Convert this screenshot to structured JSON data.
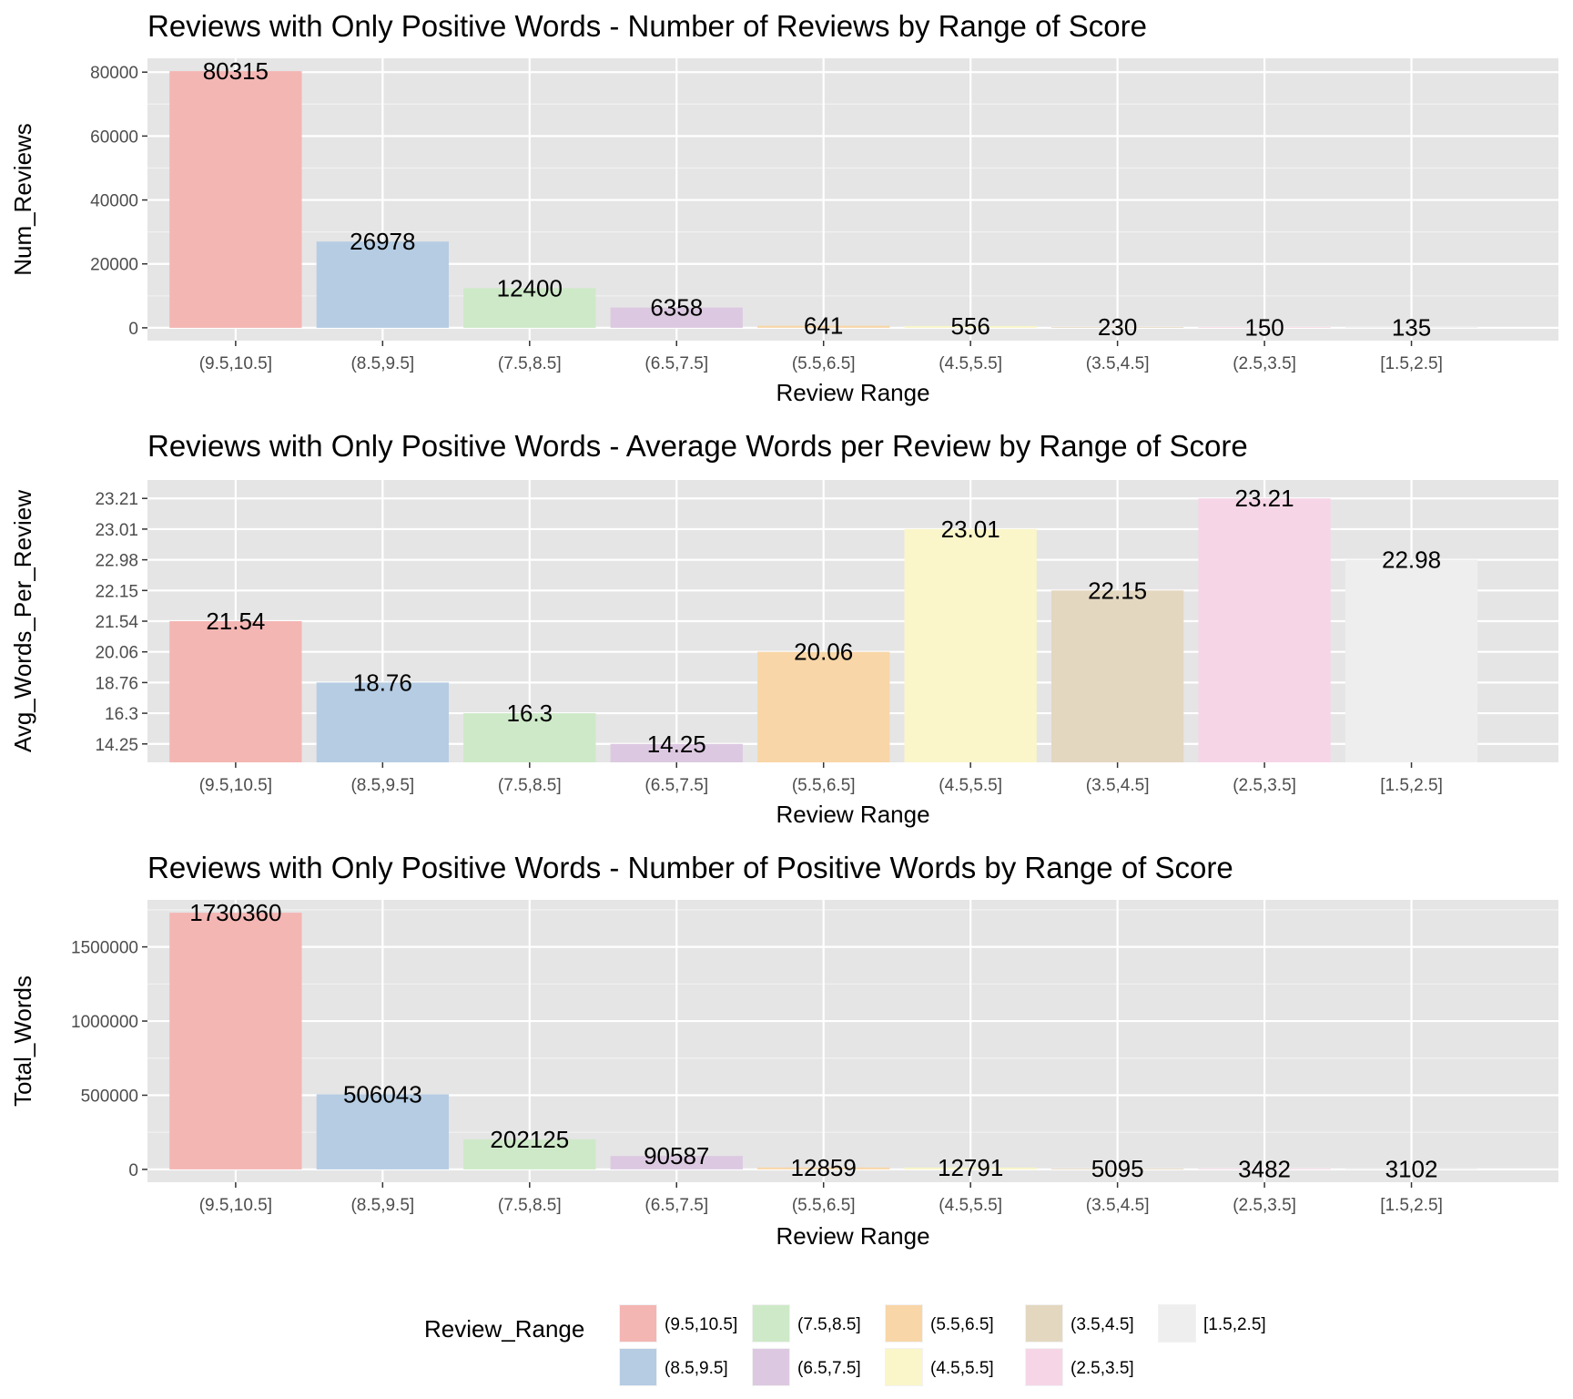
{
  "colors": {
    "(9.5,10.5]": "#F4B6B3",
    "(8.5,9.5]": "#B5CCE3",
    "(7.5,8.5]": "#CEE9C8",
    "(6.5,7.5]": "#DCC9E1",
    "(5.5,6.5]": "#F8D6A8",
    "(4.5,5.5]": "#FAF6C9",
    "(3.5,4.5]": "#E3D7C0",
    "(2.5,3.5]": "#F6D6E6",
    "[1.5,2.5]": "#EEEEEE"
  },
  "legend": {
    "title": "Review_Range",
    "items": [
      "(9.5,10.5]",
      "(8.5,9.5]",
      "(7.5,8.5]",
      "(6.5,7.5]",
      "(5.5,6.5]",
      "(4.5,5.5]",
      "(3.5,4.5]",
      "(2.5,3.5]",
      "[1.5,2.5]"
    ],
    "placement": "bottom"
  },
  "chart_data": [
    {
      "type": "bar",
      "title": "Reviews with Only Positive Words - Number of Reviews by Range of Score",
      "xlabel": "Review Range",
      "ylabel": "Num_Reviews",
      "categories": [
        "(9.5,10.5]",
        "(8.5,9.5]",
        "(7.5,8.5]",
        "(6.5,7.5]",
        "(5.5,6.5]",
        "(4.5,5.5]",
        "(3.5,4.5]",
        "(2.5,3.5]",
        "[1.5,2.5]"
      ],
      "values": [
        80315,
        26978,
        12400,
        6358,
        641,
        556,
        230,
        150,
        135
      ],
      "labels": [
        "80315",
        "26978",
        "12400",
        "6358",
        "641",
        "556",
        "230",
        "150",
        "135"
      ],
      "yticks": [
        0,
        20000,
        40000,
        60000,
        80000
      ],
      "ylim": [
        -4016,
        84331
      ],
      "grid": true
    },
    {
      "type": "bar",
      "title": "Reviews with Only Positive Words - Average Words per Review by Range of Score",
      "xlabel": "Review Range",
      "ylabel": "Avg_Words_Per_Review",
      "categories": [
        "(9.5,10.5]",
        "(8.5,9.5]",
        "(7.5,8.5]",
        "(6.5,7.5]",
        "(5.5,6.5]",
        "(4.5,5.5]",
        "(3.5,4.5]",
        "(2.5,3.5]",
        "[1.5,2.5]"
      ],
      "values": [
        21.54,
        18.76,
        16.3,
        14.25,
        20.06,
        23.01,
        22.15,
        23.21,
        22.98
      ],
      "labels": [
        "21.54",
        "18.76",
        "16.3",
        "14.25",
        "20.06",
        "23.01",
        "22.15",
        "23.21",
        "22.98"
      ],
      "yticks": [
        "14.25",
        "16.3",
        "18.76",
        "20.06",
        "21.54",
        "22.15",
        "22.98",
        "23.01",
        "23.21"
      ],
      "ylim": [
        0.4,
        9.6
      ],
      "grid": true
    },
    {
      "type": "bar",
      "title": "Reviews with Only Positive Words - Number of Positive Words by Range of Score",
      "xlabel": "Review Range",
      "ylabel": "Total_Words",
      "categories": [
        "(9.5,10.5]",
        "(8.5,9.5]",
        "(7.5,8.5]",
        "(6.5,7.5]",
        "(5.5,6.5]",
        "(4.5,5.5]",
        "(3.5,4.5]",
        "(2.5,3.5]",
        "[1.5,2.5]"
      ],
      "values": [
        1730360,
        506043,
        202125,
        90587,
        12859,
        12791,
        5095,
        3482,
        3102
      ],
      "labels": [
        "1730360",
        "506043",
        "202125",
        "90587",
        "12859",
        "12791",
        "5095",
        "3482",
        "3102"
      ],
      "yticks": [
        0,
        500000,
        1000000,
        1500000
      ],
      "ylim": [
        -86518,
        1816878
      ],
      "grid": true
    }
  ]
}
